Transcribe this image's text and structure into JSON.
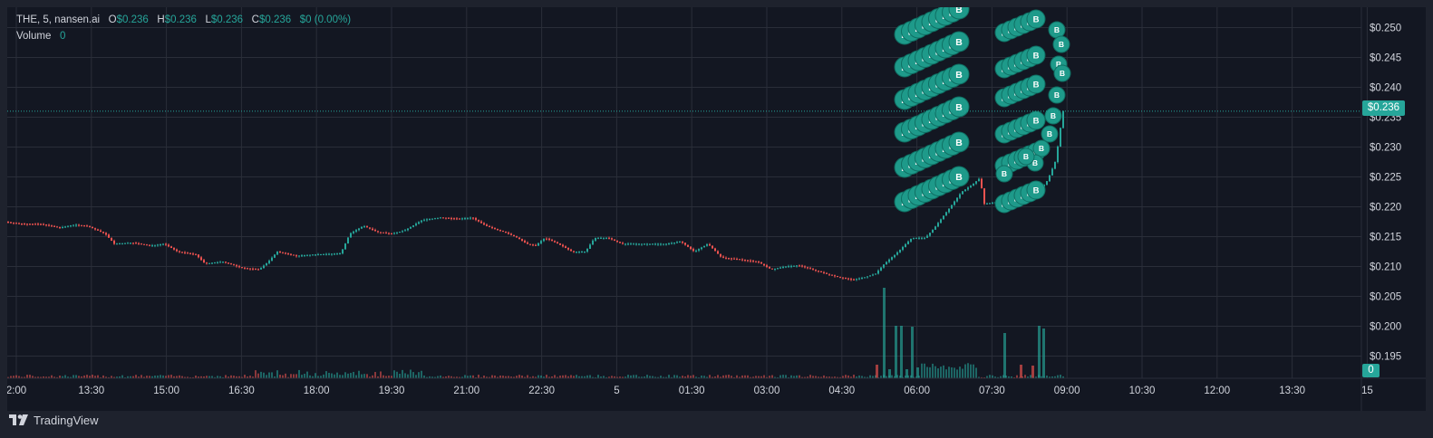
{
  "legend": {
    "symbol": "THE, 5, nansen.ai",
    "o_key": "O",
    "o_val": "$0.236",
    "h_key": "H",
    "h_val": "$0.236",
    "l_key": "L",
    "l_val": "$0.236",
    "c_key": "C",
    "c_val": "$0.236",
    "change": "$0 (0.00%)",
    "volume_label": "Volume",
    "volume_value": "0"
  },
  "last_price_label": "$0.236",
  "volume_tag": "0",
  "branding": "TradingView",
  "trade_marker_letter": "B",
  "colors": {
    "up": "#26a69a",
    "down": "#ef5350",
    "background": "#131722",
    "grid": "#2a2e39",
    "text": "#d1d4dc",
    "marker": "#1e9a8a"
  },
  "chart_data": {
    "type": "candlestick",
    "x_ticks": [
      "2:00",
      "13:30",
      "15:00",
      "16:30",
      "18:00",
      "19:30",
      "21:00",
      "22:30",
      "5",
      "01:30",
      "03:00",
      "04:30",
      "06:00",
      "07:30",
      "09:00",
      "10:30",
      "12:00",
      "13:30",
      "15"
    ],
    "y_ticks": [
      "$0.250",
      "$0.245",
      "$0.240",
      "$0.235",
      "$0.230",
      "$0.225",
      "$0.220",
      "$0.215",
      "$0.210",
      "$0.205",
      "$0.200",
      "$0.195"
    ],
    "ylim": [
      0.1925,
      0.2525
    ],
    "last_price": 0.236,
    "close_path": [
      [
        0,
        0.2175
      ],
      [
        14,
        0.2172
      ],
      [
        40,
        0.2171
      ],
      [
        60,
        0.2165
      ],
      [
        76,
        0.217
      ],
      [
        90,
        0.2168
      ],
      [
        110,
        0.2155
      ],
      [
        120,
        0.2138
      ],
      [
        140,
        0.214
      ],
      [
        160,
        0.2135
      ],
      [
        175,
        0.2138
      ],
      [
        190,
        0.2125
      ],
      [
        210,
        0.212
      ],
      [
        220,
        0.2105
      ],
      [
        240,
        0.2108
      ],
      [
        260,
        0.2098
      ],
      [
        280,
        0.2095
      ],
      [
        290,
        0.2108
      ],
      [
        300,
        0.2125
      ],
      [
        320,
        0.2118
      ],
      [
        340,
        0.212
      ],
      [
        370,
        0.2122
      ],
      [
        380,
        0.2155
      ],
      [
        395,
        0.2168
      ],
      [
        410,
        0.2158
      ],
      [
        425,
        0.2155
      ],
      [
        440,
        0.216
      ],
      [
        460,
        0.2178
      ],
      [
        480,
        0.2182
      ],
      [
        500,
        0.218
      ],
      [
        515,
        0.2182
      ],
      [
        530,
        0.2168
      ],
      [
        550,
        0.2158
      ],
      [
        565,
        0.2148
      ],
      [
        575,
        0.2138
      ],
      [
        585,
        0.2135
      ],
      [
        595,
        0.2148
      ],
      [
        610,
        0.2138
      ],
      [
        625,
        0.2125
      ],
      [
        640,
        0.2125
      ],
      [
        650,
        0.2148
      ],
      [
        665,
        0.2148
      ],
      [
        680,
        0.2138
      ],
      [
        700,
        0.2138
      ],
      [
        715,
        0.2138
      ],
      [
        730,
        0.2138
      ],
      [
        745,
        0.2142
      ],
      [
        760,
        0.2125
      ],
      [
        775,
        0.2138
      ],
      [
        790,
        0.2115
      ],
      [
        810,
        0.2112
      ],
      [
        830,
        0.2108
      ],
      [
        845,
        0.2095
      ],
      [
        860,
        0.21
      ],
      [
        875,
        0.2102
      ],
      [
        890,
        0.2095
      ],
      [
        905,
        0.2088
      ],
      [
        920,
        0.2082
      ],
      [
        935,
        0.2078
      ],
      [
        948,
        0.2082
      ],
      [
        960,
        0.2088
      ],
      [
        970,
        0.2105
      ],
      [
        985,
        0.2125
      ],
      [
        1000,
        0.2148
      ],
      [
        1015,
        0.2148
      ],
      [
        1025,
        0.2165
      ],
      [
        1035,
        0.2185
      ],
      [
        1045,
        0.2205
      ],
      [
        1055,
        0.2225
      ],
      [
        1065,
        0.2235
      ],
      [
        1075,
        0.2248
      ],
      [
        1080,
        0.2205
      ],
      [
        1095,
        0.2208
      ],
      [
        1110,
        0.2222
      ],
      [
        1125,
        0.2215
      ],
      [
        1140,
        0.2225
      ],
      [
        1150,
        0.2245
      ],
      [
        1158,
        0.2275
      ],
      [
        1163,
        0.2318
      ],
      [
        1166,
        0.236
      ]
    ],
    "volume_spikes": [
      {
        "x": 958,
        "volume": 15,
        "up": false
      },
      {
        "x": 966,
        "volume": 100,
        "up": true
      },
      {
        "x": 972,
        "volume": 10,
        "up": true
      },
      {
        "x": 979,
        "volume": 58,
        "up": true
      },
      {
        "x": 985,
        "volume": 58,
        "up": true
      },
      {
        "x": 991,
        "volume": 10,
        "up": true
      },
      {
        "x": 997,
        "volume": 57,
        "up": true
      },
      {
        "x": 1003,
        "volume": 12,
        "up": true
      },
      {
        "x": 1099,
        "volume": 50,
        "up": true
      },
      {
        "x": 1117,
        "volume": 15,
        "up": false
      },
      {
        "x": 1137,
        "volume": 58,
        "up": true
      },
      {
        "x": 1142,
        "volume": 55,
        "up": true
      },
      {
        "x": 1130,
        "volume": 14,
        "up": false
      }
    ]
  }
}
